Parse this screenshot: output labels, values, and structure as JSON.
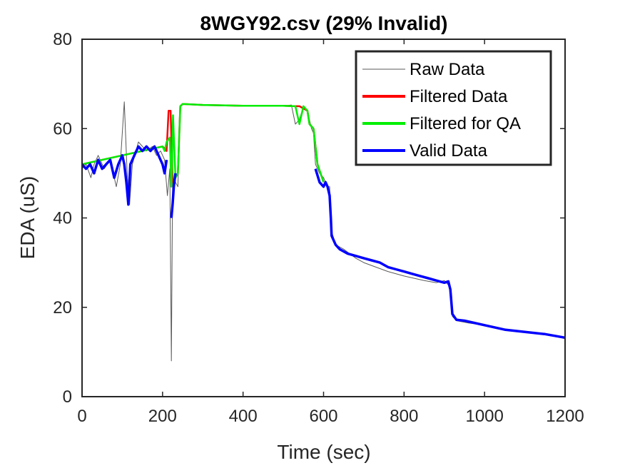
{
  "chart_data": {
    "type": "line",
    "title": "8WGY92.csv (29% Invalid)",
    "xlabel": "Time (sec)",
    "ylabel": "EDA (uS)",
    "xlim": [
      0,
      1200
    ],
    "ylim": [
      0,
      80
    ],
    "xticks": [
      0,
      200,
      400,
      600,
      800,
      1000,
      1200
    ],
    "yticks": [
      0,
      20,
      40,
      60,
      80
    ],
    "grid": false,
    "legend_position": "top-right",
    "series": [
      {
        "name": "Raw Data",
        "color": "#595959",
        "x": [
          0,
          10,
          18,
          22,
          30,
          40,
          55,
          70,
          85,
          95,
          105,
          112,
          118,
          125,
          140,
          160,
          175,
          185,
          195,
          205,
          212,
          218,
          222,
          226,
          232,
          238,
          244,
          250,
          300,
          350,
          400,
          450,
          500,
          520,
          530,
          540,
          550,
          560,
          570,
          575,
          580,
          590,
          600,
          610,
          615,
          620,
          630,
          650,
          680,
          700,
          730,
          760,
          800,
          850,
          880,
          900,
          910,
          915,
          920,
          930,
          960,
          1000,
          1050,
          1100,
          1150,
          1200
        ],
        "y": [
          51,
          52,
          50,
          49,
          52,
          54,
          51,
          53,
          47,
          52,
          66,
          50,
          43,
          52,
          57,
          55,
          56,
          54,
          55,
          53,
          45,
          51,
          8,
          62,
          48,
          47,
          65,
          65.5,
          65.3,
          65.1,
          65.0,
          65.2,
          65.0,
          65.3,
          61,
          62,
          65,
          64,
          60,
          59,
          52,
          50,
          49,
          47,
          47,
          37,
          34,
          33,
          31,
          30,
          29,
          28,
          27,
          26,
          25.5,
          26,
          25,
          24,
          18,
          17,
          16.5,
          16,
          15,
          14.5,
          14,
          13
        ]
      },
      {
        "name": "Filtered Data",
        "color": "#ff0000",
        "x": [
          0,
          200,
          210,
          215,
          220,
          225,
          232,
          238,
          244,
          250,
          300,
          400,
          500,
          530,
          540,
          560,
          565,
          570,
          575,
          580,
          585,
          600
        ],
        "y": [
          52,
          56,
          55,
          64,
          64,
          48,
          49,
          50,
          65,
          65.5,
          65.3,
          65.1,
          65.1,
          65,
          65,
          64,
          61,
          60.5,
          60,
          56,
          52,
          48
        ]
      },
      {
        "name": "Filtered for QA",
        "color": "#00ee00",
        "x": [
          0,
          200,
          205,
          210,
          218,
          222,
          226,
          232,
          238,
          244,
          250,
          300,
          400,
          500,
          530,
          540,
          550,
          560,
          565,
          570,
          575,
          580,
          585,
          600
        ],
        "y": [
          52,
          56,
          55,
          57,
          58,
          47,
          63,
          49,
          50,
          65,
          65.5,
          65.3,
          65.1,
          65.1,
          65,
          61,
          65,
          64,
          61,
          60.5,
          60,
          56,
          52,
          48
        ]
      },
      {
        "name": "Valid Data",
        "color": "#0000ff",
        "segments": [
          {
            "x": [
              0,
              10,
              20,
              30,
              40,
              50,
              60,
              70,
              80,
              90,
              100,
              105,
              110,
              115,
              120,
              130,
              140,
              150,
              160,
              170,
              180,
              190,
              200,
              205,
              210
            ],
            "y": [
              52,
              51,
              52,
              50,
              53,
              51,
              52,
              53,
              49,
              52,
              54,
              52,
              48,
              43,
              52,
              54,
              56,
              55,
              56,
              55,
              56,
              54,
              52,
              50,
              53
            ]
          },
          {
            "x": [
              222,
              225,
              228,
              232
            ],
            "y": [
              40,
              43,
              47,
              50
            ]
          },
          {
            "x": [
              580,
              590,
              600,
              605,
              610,
              615,
              618,
              620,
              630,
              640,
              660,
              680,
              700,
              720,
              740,
              760,
              780,
              800,
              820,
              840,
              860,
              880,
              900,
              910,
              915,
              920,
              930,
              950,
              1000,
              1050,
              1100,
              1150,
              1200
            ],
            "y": [
              51,
              48,
              47,
              48,
              47,
              45,
              40,
              36,
              34,
              33,
              32,
              31.5,
              31,
              30.5,
              30,
              29,
              28.5,
              28,
              27.5,
              27,
              26.5,
              26,
              25.5,
              25.8,
              24,
              18.5,
              17.2,
              17,
              16,
              15,
              14.5,
              14,
              13.2
            ]
          }
        ]
      }
    ]
  }
}
